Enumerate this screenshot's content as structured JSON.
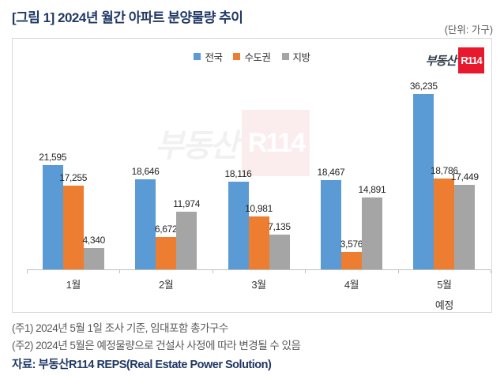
{
  "page": {
    "title": "[그림 1] 2024년 월간 아파트 분양물량 추이",
    "unit_label": "(단위: 가구)"
  },
  "logo": {
    "text": "부동산",
    "badge": "R114"
  },
  "watermark": {
    "text": "부동산",
    "badge": "R114"
  },
  "chart_data": {
    "type": "bar",
    "title": "2024년 월간 아파트 분양물량 추이",
    "unit": "가구",
    "categories": [
      "1월",
      "2월",
      "3월",
      "4월",
      "5월"
    ],
    "category_sublabels": [
      "",
      "",
      "",
      "",
      "예정"
    ],
    "series": [
      {
        "name": "전국",
        "color": "#5B9BD5",
        "values": [
          21595,
          18646,
          18116,
          18467,
          36235
        ]
      },
      {
        "name": "수도권",
        "color": "#ED7D31",
        "values": [
          17255,
          6672,
          10981,
          3576,
          18786
        ]
      },
      {
        "name": "지방",
        "color": "#A5A5A5",
        "values": [
          4340,
          11974,
          7135,
          14891,
          17449
        ]
      }
    ],
    "ylim": [
      0,
      40000
    ],
    "grid": false,
    "legend_position": "top-center",
    "data_labels": true,
    "axis_color": "#BFBFBF"
  },
  "footer": {
    "notes": [
      "(주1) 2024년 5월 1일 조사 기준, 임대포함 총가구수",
      "(주2) 2024년 5월은 예정물량으로 건설사 사정에 따라 변경될 수 있음"
    ],
    "source": "자료: 부동산R114 REPS(Real Estate Power Solution)"
  }
}
